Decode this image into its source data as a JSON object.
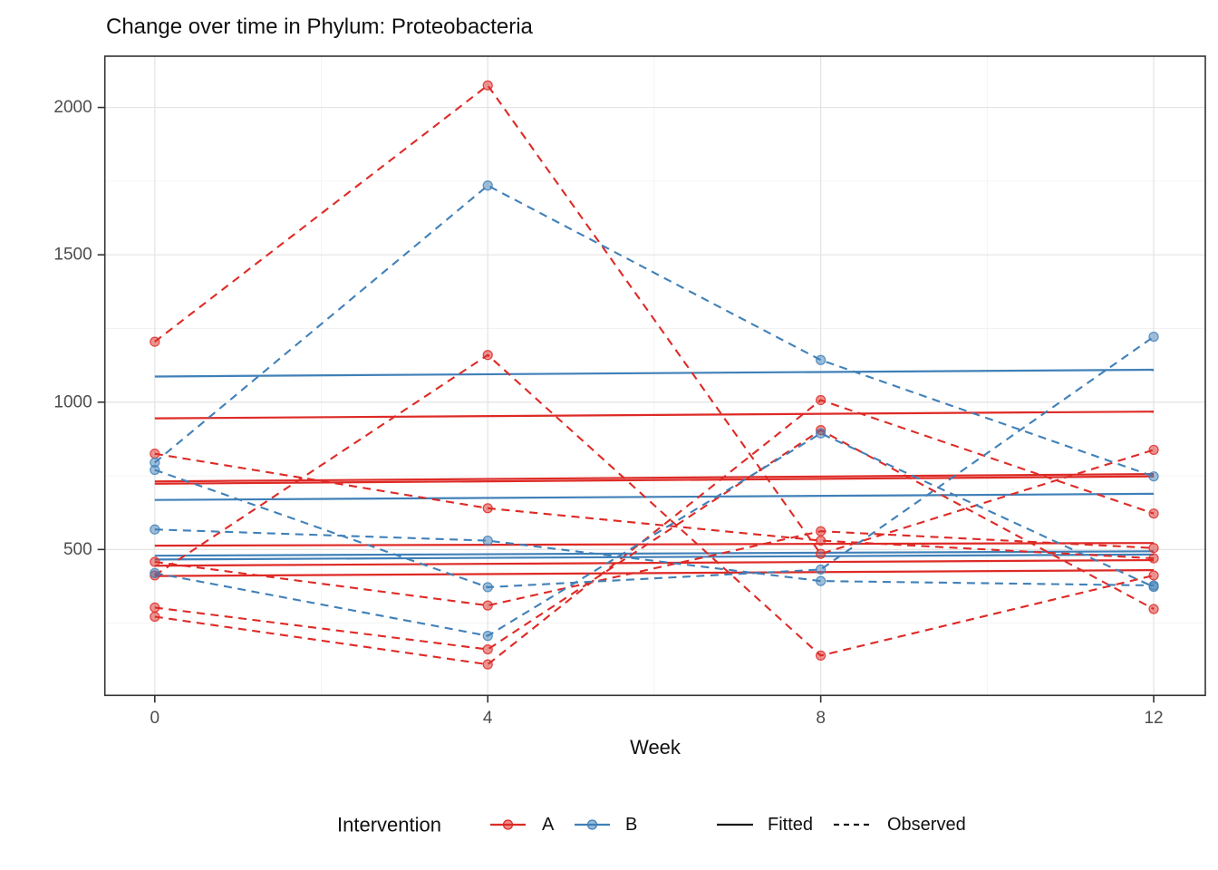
{
  "title": "Change over time in Phylum: Proteobacteria",
  "chart_data": {
    "type": "line",
    "title": "Change over time in Phylum: Proteobacteria",
    "xlabel": "Week",
    "ylabel": "",
    "weeks": [
      0,
      4,
      8,
      12
    ],
    "x_ticks": [
      0,
      4,
      8,
      12
    ],
    "x_minor": [
      2,
      6,
      10
    ],
    "y_ticks": [
      500,
      1000,
      1500,
      2000
    ],
    "y_minor": [
      250,
      750,
      1250,
      1750
    ],
    "xlim": [
      -0.6,
      12.62
    ],
    "ylim": [
      5,
      2174
    ],
    "grid": true,
    "legend_position": "bottom",
    "colors": {
      "A": "#DE2A26",
      "B": "#4080B8",
      "grid_major": "#E3E3E3",
      "grid_minor": "#F1F1F1",
      "panel_border": "#333333",
      "tick_mark": "#333333",
      "tick_label": "#4D4D4D",
      "key_line": "#1a1a1a"
    },
    "series": {
      "observed": [
        {
          "group": "A",
          "values": [
            1205,
            2075,
            485,
            838
          ]
        },
        {
          "group": "A",
          "values": [
            825,
            640,
            530,
            470
          ]
        },
        {
          "group": "A",
          "values": [
            458,
            310,
            562,
            505
          ]
        },
        {
          "group": "A",
          "values": [
            412,
            1160,
            140,
            412
          ]
        },
        {
          "group": "A",
          "values": [
            303,
            161,
            905,
            298
          ]
        },
        {
          "group": "A",
          "values": [
            272,
            110,
            1007,
            622
          ]
        },
        {
          "group": "B",
          "values": [
            795,
            1735,
            1143,
            748
          ]
        },
        {
          "group": "B",
          "values": [
            770,
            372,
            432,
            1222
          ]
        },
        {
          "group": "B",
          "values": [
            568,
            530,
            393,
            378
          ]
        },
        {
          "group": "B",
          "values": [
            420,
            207,
            894,
            373
          ]
        }
      ],
      "fitted": [
        {
          "group": "A",
          "start": 945,
          "end": 968
        },
        {
          "group": "A",
          "start": 723,
          "end": 748
        },
        {
          "group": "A",
          "start": 731,
          "end": 756
        },
        {
          "group": "A",
          "start": 513,
          "end": 522
        },
        {
          "group": "A",
          "start": 445,
          "end": 464
        },
        {
          "group": "A",
          "start": 410,
          "end": 430
        },
        {
          "group": "B",
          "start": 1087,
          "end": 1110
        },
        {
          "group": "B",
          "start": 668,
          "end": 689
        },
        {
          "group": "B",
          "start": 479,
          "end": 494
        },
        {
          "group": "B",
          "start": 466,
          "end": 483
        }
      ]
    },
    "legend": {
      "title": "Intervention",
      "groups": [
        {
          "label": "A"
        },
        {
          "label": "B"
        }
      ],
      "linetypes": [
        {
          "label": "Fitted",
          "style": "solid"
        },
        {
          "label": "Observed",
          "style": "dashed"
        }
      ]
    }
  }
}
